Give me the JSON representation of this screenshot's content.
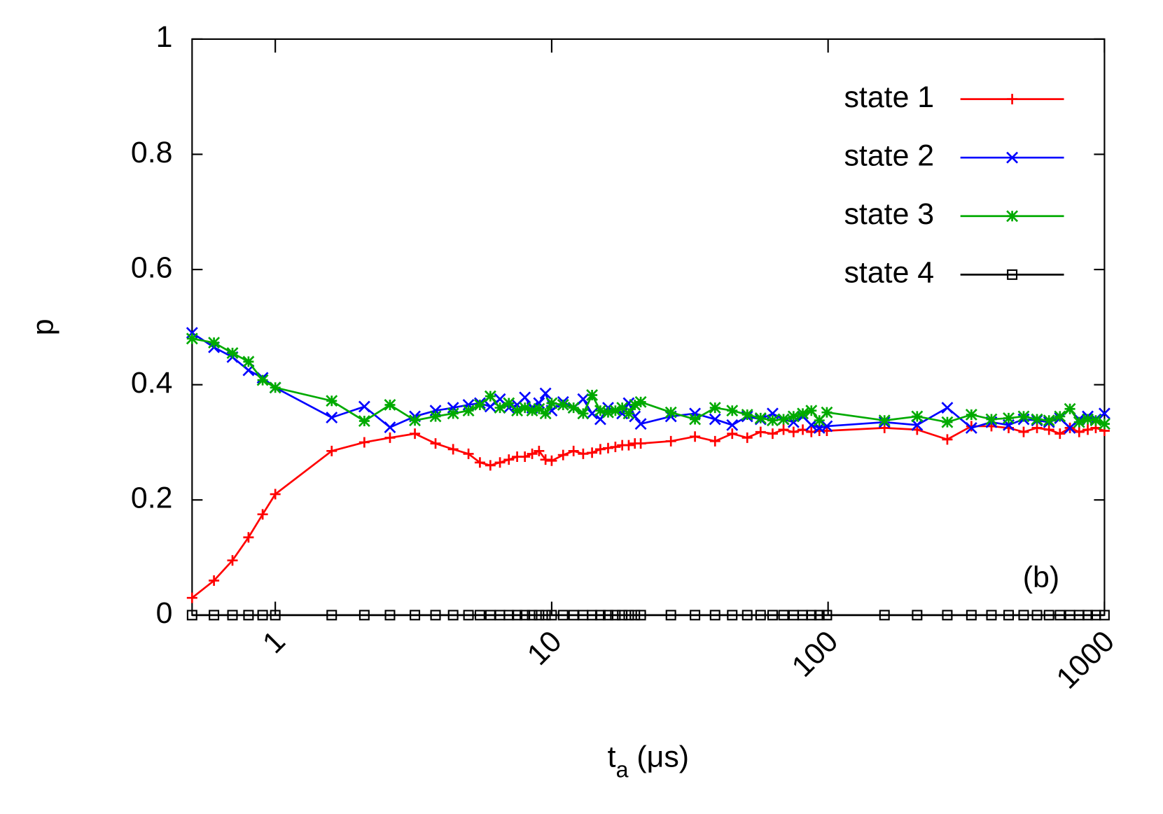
{
  "chart_data": {
    "type": "line",
    "xlabel": "ta (μs)",
    "ylabel": "p",
    "annotation": "(b)",
    "xscale": "log",
    "legend": "upper right",
    "xlim": [
      0.5,
      1000
    ],
    "ylim": [
      0,
      1
    ],
    "xticks": [
      1,
      10,
      100,
      1000
    ],
    "yticks": [
      0,
      0.2,
      0.4,
      0.6,
      0.8,
      1
    ],
    "x": [
      0.5,
      0.6,
      0.7,
      0.8,
      0.9,
      1.0,
      1.6,
      2.1,
      2.6,
      3.2,
      3.8,
      4.4,
      5,
      5.5,
      6,
      6.5,
      7,
      7.5,
      8,
      8.5,
      9,
      9.5,
      10,
      11,
      12,
      13,
      14,
      15,
      16,
      17,
      18,
      19,
      20,
      21,
      27,
      33,
      39,
      45,
      51,
      57,
      63,
      69,
      75,
      81,
      87,
      93,
      99,
      160,
      210,
      270,
      330,
      390,
      450,
      510,
      570,
      630,
      690,
      750,
      810,
      870,
      930,
      1000
    ],
    "series": [
      {
        "name": "state 1",
        "color": "#ff0000",
        "marker": "plus",
        "values": [
          0.03,
          0.06,
          0.095,
          0.135,
          0.175,
          0.21,
          0.285,
          0.3,
          0.308,
          0.315,
          0.298,
          0.288,
          0.28,
          0.265,
          0.26,
          0.265,
          0.27,
          0.275,
          0.275,
          0.28,
          0.285,
          0.27,
          0.268,
          0.278,
          0.285,
          0.28,
          0.282,
          0.288,
          0.29,
          0.292,
          0.295,
          0.295,
          0.298,
          0.298,
          0.302,
          0.31,
          0.302,
          0.315,
          0.308,
          0.318,
          0.315,
          0.322,
          0.318,
          0.322,
          0.318,
          0.32,
          0.32,
          0.325,
          0.322,
          0.305,
          0.328,
          0.328,
          0.325,
          0.318,
          0.325,
          0.322,
          0.315,
          0.325,
          0.318,
          0.322,
          0.325,
          0.32
        ]
      },
      {
        "name": "state 2",
        "color": "#0000ff",
        "marker": "cross",
        "values": [
          0.49,
          0.465,
          0.448,
          0.425,
          0.412,
          0.395,
          0.343,
          0.362,
          0.326,
          0.345,
          0.355,
          0.36,
          0.365,
          0.368,
          0.362,
          0.375,
          0.36,
          0.365,
          0.378,
          0.36,
          0.368,
          0.385,
          0.355,
          0.37,
          0.36,
          0.375,
          0.35,
          0.34,
          0.36,
          0.355,
          0.35,
          0.368,
          0.345,
          0.332,
          0.345,
          0.35,
          0.34,
          0.33,
          0.345,
          0.34,
          0.35,
          0.34,
          0.335,
          0.345,
          0.33,
          0.325,
          0.328,
          0.335,
          0.33,
          0.36,
          0.325,
          0.335,
          0.33,
          0.34,
          0.338,
          0.335,
          0.342,
          0.325,
          0.34,
          0.345,
          0.34,
          0.35
        ]
      },
      {
        "name": "state 3",
        "color": "#00aa00",
        "marker": "star",
        "values": [
          0.48,
          0.473,
          0.455,
          0.44,
          0.408,
          0.395,
          0.372,
          0.337,
          0.365,
          0.338,
          0.345,
          0.35,
          0.355,
          0.365,
          0.38,
          0.36,
          0.368,
          0.355,
          0.36,
          0.355,
          0.358,
          0.35,
          0.368,
          0.365,
          0.36,
          0.35,
          0.382,
          0.355,
          0.352,
          0.355,
          0.36,
          0.35,
          0.365,
          0.37,
          0.352,
          0.34,
          0.36,
          0.355,
          0.348,
          0.342,
          0.338,
          0.34,
          0.345,
          0.35,
          0.355,
          0.338,
          0.352,
          0.338,
          0.345,
          0.335,
          0.348,
          0.34,
          0.342,
          0.345,
          0.34,
          0.338,
          0.345,
          0.358,
          0.335,
          0.34,
          0.338,
          0.332
        ]
      },
      {
        "name": "state 4",
        "color": "#000000",
        "marker": "square",
        "values": [
          0,
          0,
          0,
          0,
          0,
          0,
          0,
          0,
          0,
          0,
          0,
          0,
          0,
          0,
          0,
          0,
          0,
          0,
          0,
          0,
          0,
          0,
          0,
          0,
          0,
          0,
          0,
          0,
          0,
          0,
          0,
          0,
          0,
          0,
          0,
          0,
          0,
          0,
          0,
          0,
          0,
          0,
          0,
          0,
          0,
          0,
          0,
          0,
          0,
          0,
          0,
          0,
          0,
          0,
          0,
          0,
          0,
          0,
          0,
          0,
          0,
          0
        ]
      }
    ]
  }
}
